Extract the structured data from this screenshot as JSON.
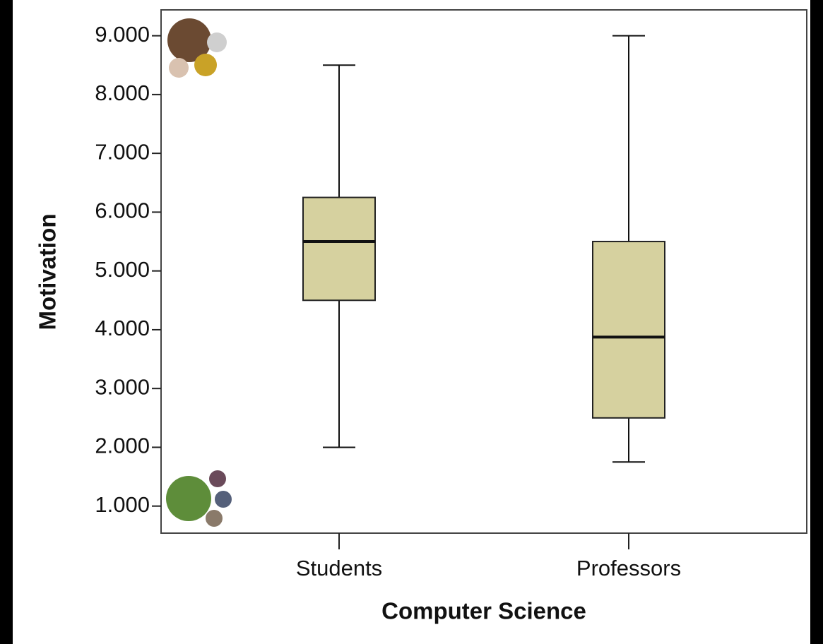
{
  "chart_data": {
    "type": "box",
    "x_label": "Computer Science",
    "y_label": "Motivation",
    "categories": [
      "Students",
      "Professors"
    ],
    "boxes": [
      {
        "min": 2.0,
        "q1": 4.5,
        "median": 5.5,
        "q3": 6.25,
        "max": 8.5
      },
      {
        "min": 1.75,
        "q1": 2.5,
        "median": 3.875,
        "q3": 5.5,
        "max": 9.0
      }
    ],
    "color": "#d6d19f",
    "ylim": [
      0.54,
      9.44
    ],
    "yticks": [
      {
        "value": 1,
        "label": "1.000"
      },
      {
        "value": 2,
        "label": "2.000"
      },
      {
        "value": 3,
        "label": "3.000"
      },
      {
        "value": 4,
        "label": "4.000"
      },
      {
        "value": 5,
        "label": "5.000"
      },
      {
        "value": 6,
        "label": "6.000"
      },
      {
        "value": 7,
        "label": "7.000"
      },
      {
        "value": 8,
        "label": "8.000"
      },
      {
        "value": 9,
        "label": "9.000"
      }
    ]
  }
}
